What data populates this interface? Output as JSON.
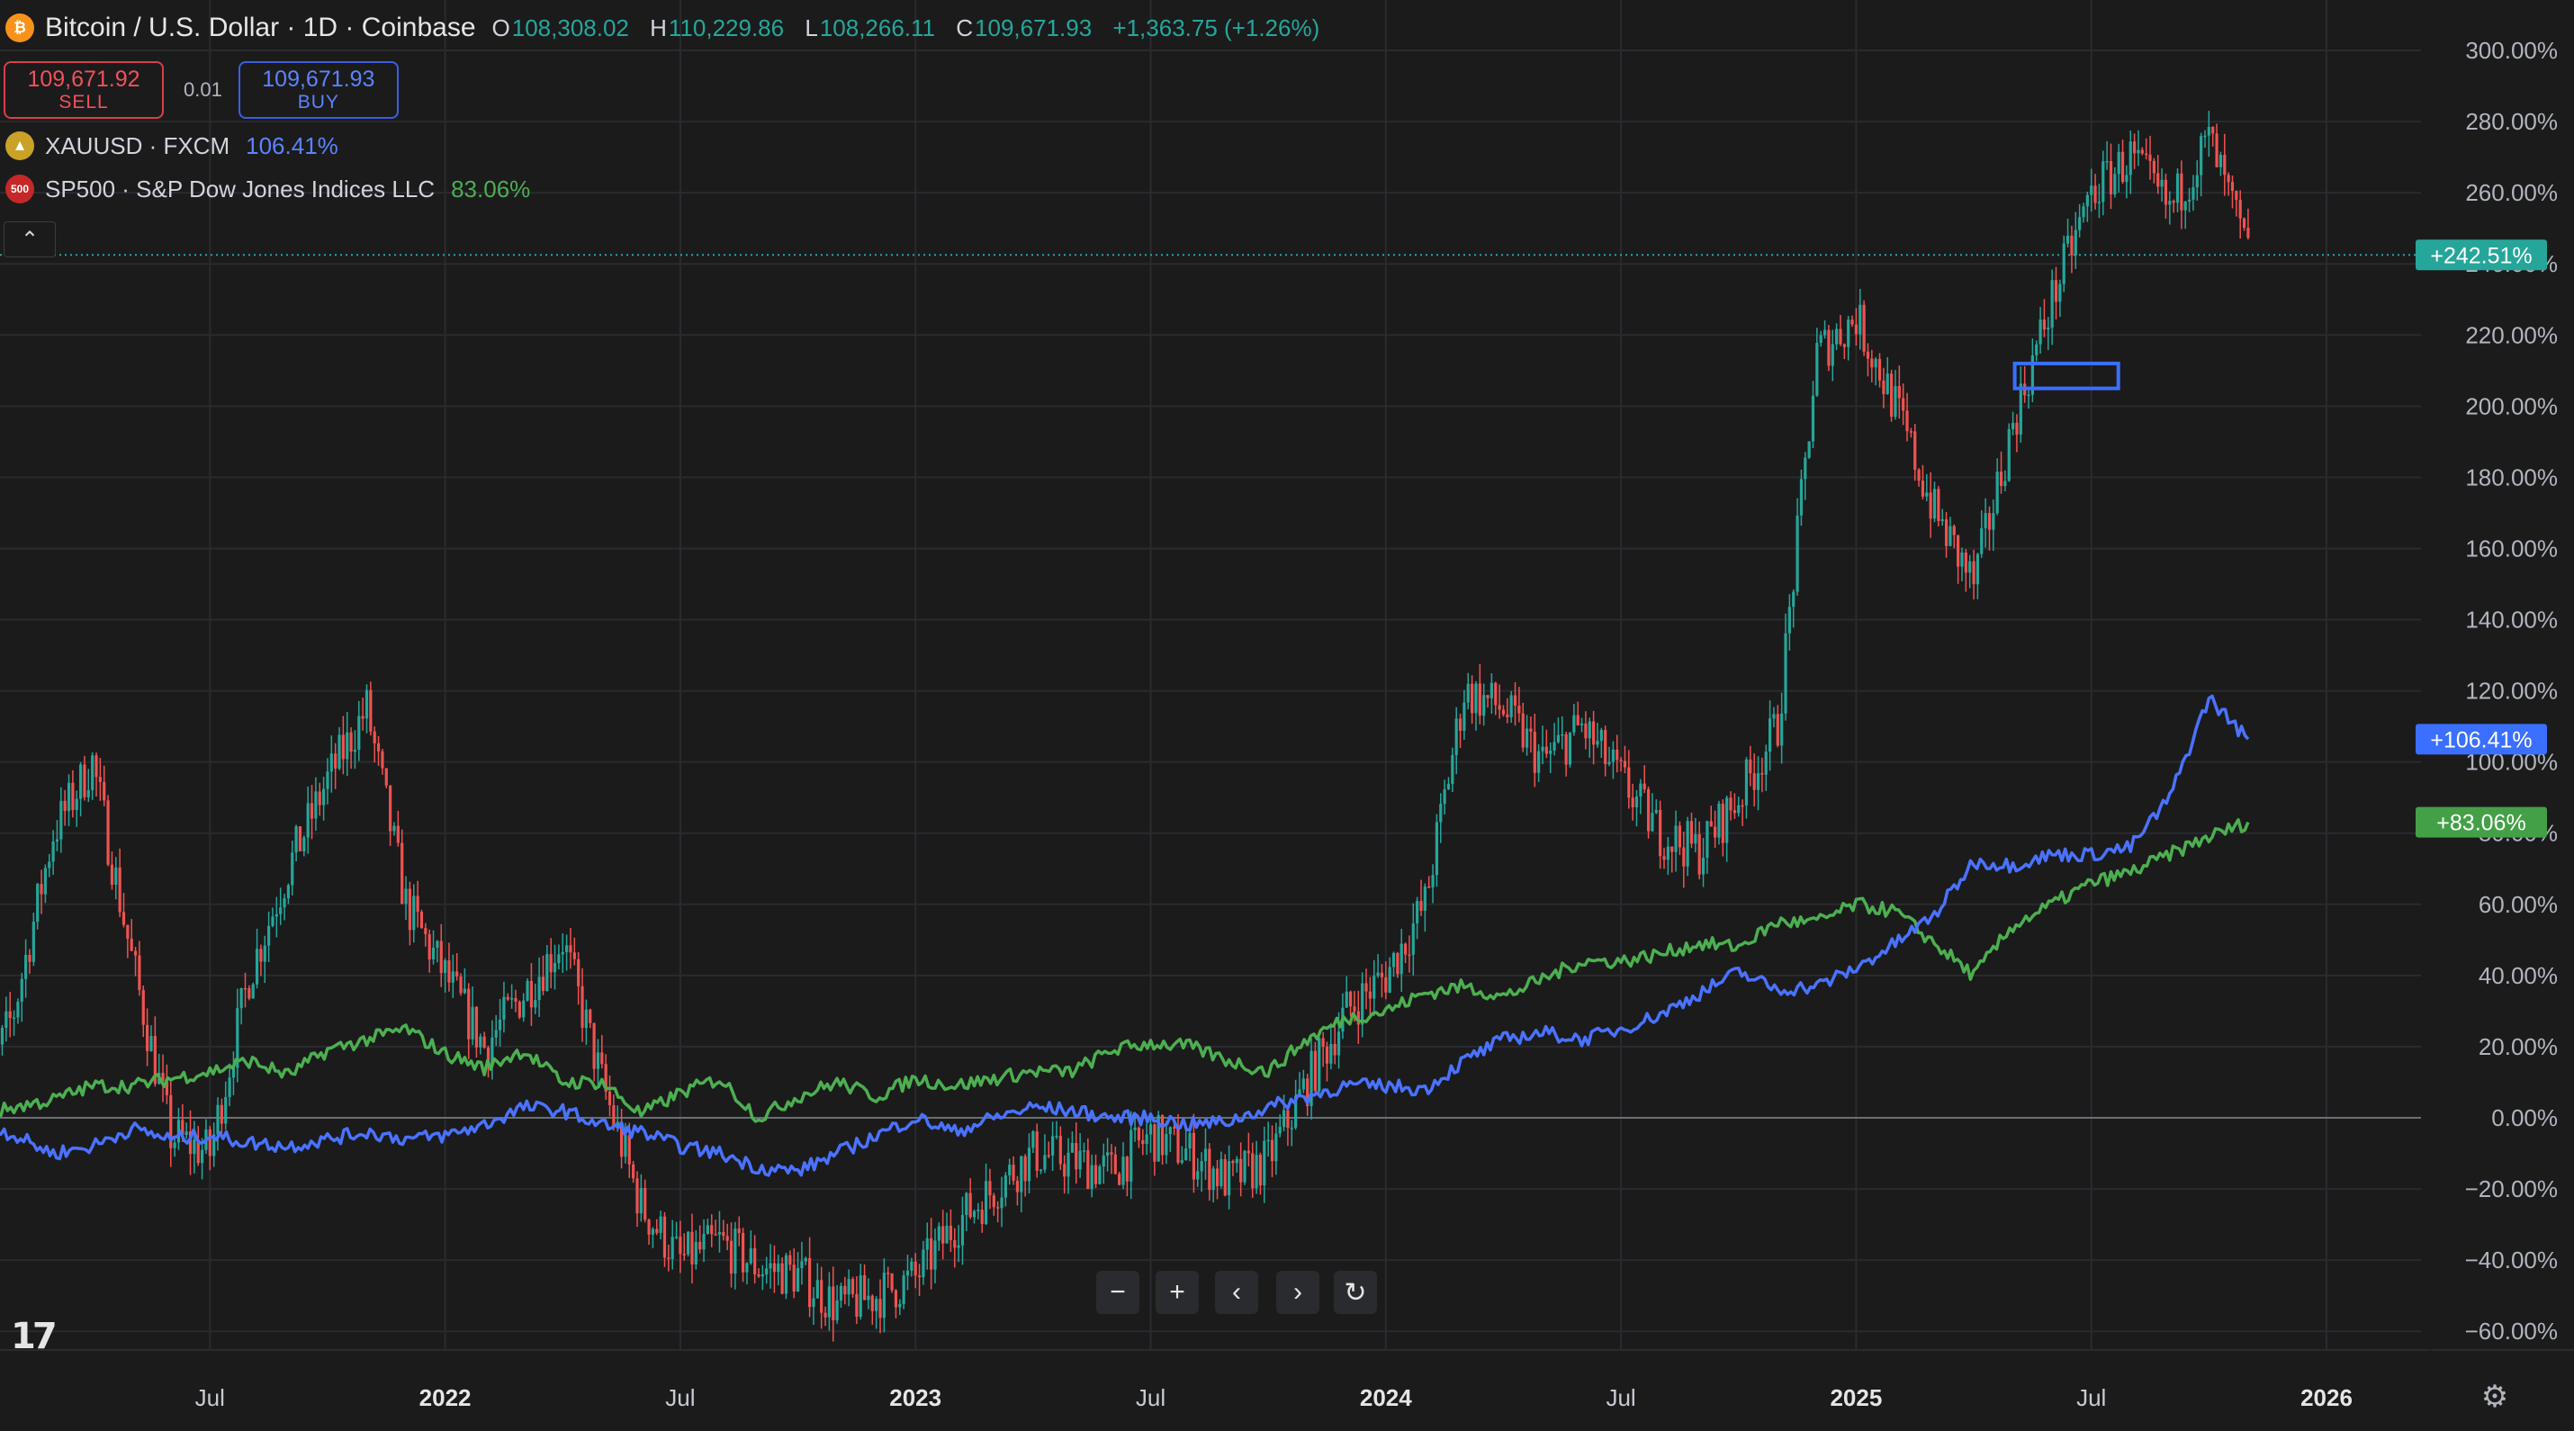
{
  "header": {
    "symbol_icon": "bitcoin-icon",
    "symbol_icon_glyph": "₿",
    "title": "Bitcoin / U.S. Dollar · 1D · Coinbase",
    "ohlc": {
      "o_key": "O",
      "o": "108,308.02",
      "h_key": "H",
      "h": "110,229.86",
      "l_key": "L",
      "l": "108,266.11",
      "c_key": "C",
      "c": "109,671.93",
      "change": "+1,363.75 (+1.26%)"
    }
  },
  "trade": {
    "sell_price": "109,671.92",
    "sell_label": "SELL",
    "spread": "0.01",
    "buy_price": "109,671.93",
    "buy_label": "BUY"
  },
  "compare": [
    {
      "icon": "gold-icon",
      "icon_glyph": "▲",
      "name": "XAUUSD · FXCM",
      "value": "106.41%",
      "color": "#5b84ff"
    },
    {
      "icon": "sp500-icon",
      "icon_glyph": "500",
      "name": "SP500 · S&P Dow Jones Indices LLC",
      "value": "83.06%",
      "color": "#4caf50"
    }
  ],
  "collapse_glyph": "⌃",
  "controls": {
    "zoom_out": "−",
    "zoom_in": "+",
    "prev": "‹",
    "next": "›",
    "reset": "↻"
  },
  "logo_text": "17",
  "settings_icon_glyph": "⚙",
  "chart_data": {
    "type": "line",
    "y_unit": "%",
    "ylim": [
      -60,
      300
    ],
    "y_ticks": [
      "300.00%",
      "280.00%",
      "260.00%",
      "240.00%",
      "220.00%",
      "200.00%",
      "180.00%",
      "160.00%",
      "140.00%",
      "120.00%",
      "100.00%",
      "80.00%",
      "60.00%",
      "40.00%",
      "20.00%",
      "0.00%",
      "−20.00%",
      "−40.00%",
      "−60.00%"
    ],
    "x_ticks": [
      {
        "label": "Jul",
        "date": "2021-07",
        "bold": false
      },
      {
        "label": "2022",
        "date": "2022-01",
        "bold": true
      },
      {
        "label": "Jul",
        "date": "2022-07",
        "bold": false
      },
      {
        "label": "2023",
        "date": "2023-01",
        "bold": true
      },
      {
        "label": "Jul",
        "date": "2023-07",
        "bold": false
      },
      {
        "label": "2024",
        "date": "2024-01",
        "bold": true
      },
      {
        "label": "Jul",
        "date": "2024-07",
        "bold": false
      },
      {
        "label": "2025",
        "date": "2025-01",
        "bold": true
      },
      {
        "label": "Jul",
        "date": "2025-07",
        "bold": false
      },
      {
        "label": "2026",
        "date": "2026-01",
        "bold": true
      }
    ],
    "series": [
      {
        "name": "Bitcoin / U.S. Dollar",
        "style": "candles",
        "last_badge": "+242.51%",
        "last": 242.51,
        "up_color": "#26a69a",
        "down_color": "#ef5350",
        "points": [
          [
            "2021-01",
            0
          ],
          [
            "2021-02",
            30
          ],
          [
            "2021-03",
            80
          ],
          [
            "2021-04",
            100
          ],
          [
            "2021-05",
            45
          ],
          [
            "2021-06",
            -5
          ],
          [
            "2021-07",
            -10
          ],
          [
            "2021-08",
            40
          ],
          [
            "2021-09",
            70
          ],
          [
            "2021-10",
            95
          ],
          [
            "2021-11",
            115
          ],
          [
            "2021-12",
            60
          ],
          [
            "2022-01",
            40
          ],
          [
            "2022-02",
            20
          ],
          [
            "2022-03",
            35
          ],
          [
            "2022-04",
            50
          ],
          [
            "2022-05",
            10
          ],
          [
            "2022-06",
            -25
          ],
          [
            "2022-07",
            -40
          ],
          [
            "2022-08",
            -35
          ],
          [
            "2022-09",
            -42
          ],
          [
            "2022-10",
            -44
          ],
          [
            "2022-11",
            -53
          ],
          [
            "2022-12",
            -50
          ],
          [
            "2023-01",
            -45
          ],
          [
            "2023-02",
            -30
          ],
          [
            "2023-03",
            -20
          ],
          [
            "2023-04",
            -10
          ],
          [
            "2023-05",
            -12
          ],
          [
            "2023-06",
            -15
          ],
          [
            "2023-07",
            -5
          ],
          [
            "2023-08",
            -10
          ],
          [
            "2023-09",
            -18
          ],
          [
            "2023-10",
            -12
          ],
          [
            "2023-11",
            10
          ],
          [
            "2023-12",
            30
          ],
          [
            "2024-01",
            40
          ],
          [
            "2024-02",
            60
          ],
          [
            "2024-03",
            120
          ],
          [
            "2024-04",
            115
          ],
          [
            "2024-05",
            100
          ],
          [
            "2024-06",
            110
          ],
          [
            "2024-07",
            95
          ],
          [
            "2024-08",
            80
          ],
          [
            "2024-09",
            75
          ],
          [
            "2024-10",
            90
          ],
          [
            "2024-11",
            110
          ],
          [
            "2024-12",
            215
          ],
          [
            "2025-01",
            225
          ],
          [
            "2025-02",
            200
          ],
          [
            "2025-03",
            170
          ],
          [
            "2025-04",
            150
          ],
          [
            "2025-05",
            195
          ],
          [
            "2025-06",
            230
          ],
          [
            "2025-07",
            260
          ],
          [
            "2025-08",
            270
          ],
          [
            "2025-09",
            255
          ],
          [
            "2025-10",
            275
          ],
          [
            "2025-11",
            242.51
          ]
        ]
      },
      {
        "name": "XAUUSD · FXCM",
        "style": "line",
        "color": "#4a72ff",
        "last_badge": "+106.41%",
        "last": 106.41,
        "points": [
          [
            "2021-01",
            0
          ],
          [
            "2021-02",
            -5
          ],
          [
            "2021-03",
            -10
          ],
          [
            "2021-04",
            -8
          ],
          [
            "2021-05",
            -3
          ],
          [
            "2021-06",
            -6
          ],
          [
            "2021-07",
            -5
          ],
          [
            "2021-08",
            -7
          ],
          [
            "2021-09",
            -8
          ],
          [
            "2021-10",
            -6
          ],
          [
            "2021-11",
            -4
          ],
          [
            "2021-12",
            -6
          ],
          [
            "2022-01",
            -5
          ],
          [
            "2022-02",
            -2
          ],
          [
            "2022-03",
            3
          ],
          [
            "2022-04",
            2
          ],
          [
            "2022-05",
            -2
          ],
          [
            "2022-06",
            -4
          ],
          [
            "2022-07",
            -8
          ],
          [
            "2022-08",
            -10
          ],
          [
            "2022-09",
            -14
          ],
          [
            "2022-10",
            -15
          ],
          [
            "2022-11",
            -10
          ],
          [
            "2022-12",
            -5
          ],
          [
            "2023-01",
            0
          ],
          [
            "2023-02",
            -4
          ],
          [
            "2023-03",
            0
          ],
          [
            "2023-04",
            3
          ],
          [
            "2023-05",
            2
          ],
          [
            "2023-06",
            0
          ],
          [
            "2023-07",
            0
          ],
          [
            "2023-08",
            -2
          ],
          [
            "2023-09",
            -1
          ],
          [
            "2023-10",
            3
          ],
          [
            "2023-11",
            6
          ],
          [
            "2023-12",
            9
          ],
          [
            "2024-01",
            9
          ],
          [
            "2024-02",
            8
          ],
          [
            "2024-03",
            16
          ],
          [
            "2024-04",
            22
          ],
          [
            "2024-05",
            24
          ],
          [
            "2024-06",
            22
          ],
          [
            "2024-07",
            25
          ],
          [
            "2024-08",
            29
          ],
          [
            "2024-09",
            35
          ],
          [
            "2024-10",
            41
          ],
          [
            "2024-11",
            36
          ],
          [
            "2024-12",
            37
          ],
          [
            "2025-01",
            42
          ],
          [
            "2025-02",
            49
          ],
          [
            "2025-03",
            57
          ],
          [
            "2025-04",
            72
          ],
          [
            "2025-05",
            71
          ],
          [
            "2025-06",
            74
          ],
          [
            "2025-07",
            74
          ],
          [
            "2025-08",
            76
          ],
          [
            "2025-09",
            90
          ],
          [
            "2025-10",
            118
          ],
          [
            "2025-11",
            106.41
          ]
        ]
      },
      {
        "name": "SP500 · S&P Dow Jones Indices LLC",
        "style": "line",
        "color": "#4caf50",
        "last_badge": "+83.06%",
        "last": 83.06,
        "points": [
          [
            "2021-01",
            0
          ],
          [
            "2021-02",
            3
          ],
          [
            "2021-03",
            5
          ],
          [
            "2021-04",
            9
          ],
          [
            "2021-05",
            9
          ],
          [
            "2021-06",
            11
          ],
          [
            "2021-07",
            13
          ],
          [
            "2021-08",
            16
          ],
          [
            "2021-09",
            12
          ],
          [
            "2021-10",
            19
          ],
          [
            "2021-11",
            22
          ],
          [
            "2021-12",
            25
          ],
          [
            "2022-01",
            18
          ],
          [
            "2022-02",
            14
          ],
          [
            "2022-03",
            19
          ],
          [
            "2022-04",
            10
          ],
          [
            "2022-05",
            10
          ],
          [
            "2022-06",
            1
          ],
          [
            "2022-07",
            7
          ],
          [
            "2022-08",
            11
          ],
          [
            "2022-09",
            0
          ],
          [
            "2022-10",
            6
          ],
          [
            "2022-11",
            10
          ],
          [
            "2022-12",
            6
          ],
          [
            "2023-01",
            11
          ],
          [
            "2023-02",
            9
          ],
          [
            "2023-03",
            11
          ],
          [
            "2023-04",
            13
          ],
          [
            "2023-05",
            13
          ],
          [
            "2023-06",
            19
          ],
          [
            "2023-07",
            21
          ],
          [
            "2023-08",
            20
          ],
          [
            "2023-09",
            16
          ],
          [
            "2023-10",
            13
          ],
          [
            "2023-11",
            22
          ],
          [
            "2023-12",
            28
          ],
          [
            "2024-01",
            30
          ],
          [
            "2024-02",
            35
          ],
          [
            "2024-03",
            37
          ],
          [
            "2024-04",
            34
          ],
          [
            "2024-05",
            39
          ],
          [
            "2024-06",
            44
          ],
          [
            "2024-07",
            44
          ],
          [
            "2024-08",
            46
          ],
          [
            "2024-09",
            49
          ],
          [
            "2024-10",
            48
          ],
          [
            "2024-11",
            55
          ],
          [
            "2024-12",
            55
          ],
          [
            "2025-01",
            60
          ],
          [
            "2025-02",
            58
          ],
          [
            "2025-03",
            49
          ],
          [
            "2025-04",
            40
          ],
          [
            "2025-05",
            54
          ],
          [
            "2025-06",
            60
          ],
          [
            "2025-07",
            66
          ],
          [
            "2025-08",
            69
          ],
          [
            "2025-09",
            74
          ],
          [
            "2025-10",
            79
          ],
          [
            "2025-11",
            83.06
          ]
        ]
      }
    ],
    "zero_line": 0,
    "current_line_value": 242.51,
    "highlight_box": {
      "x0": "2025-05",
      "x1": "2025-07",
      "y0": 205,
      "y1": 212,
      "color": "#3b6fff"
    }
  }
}
